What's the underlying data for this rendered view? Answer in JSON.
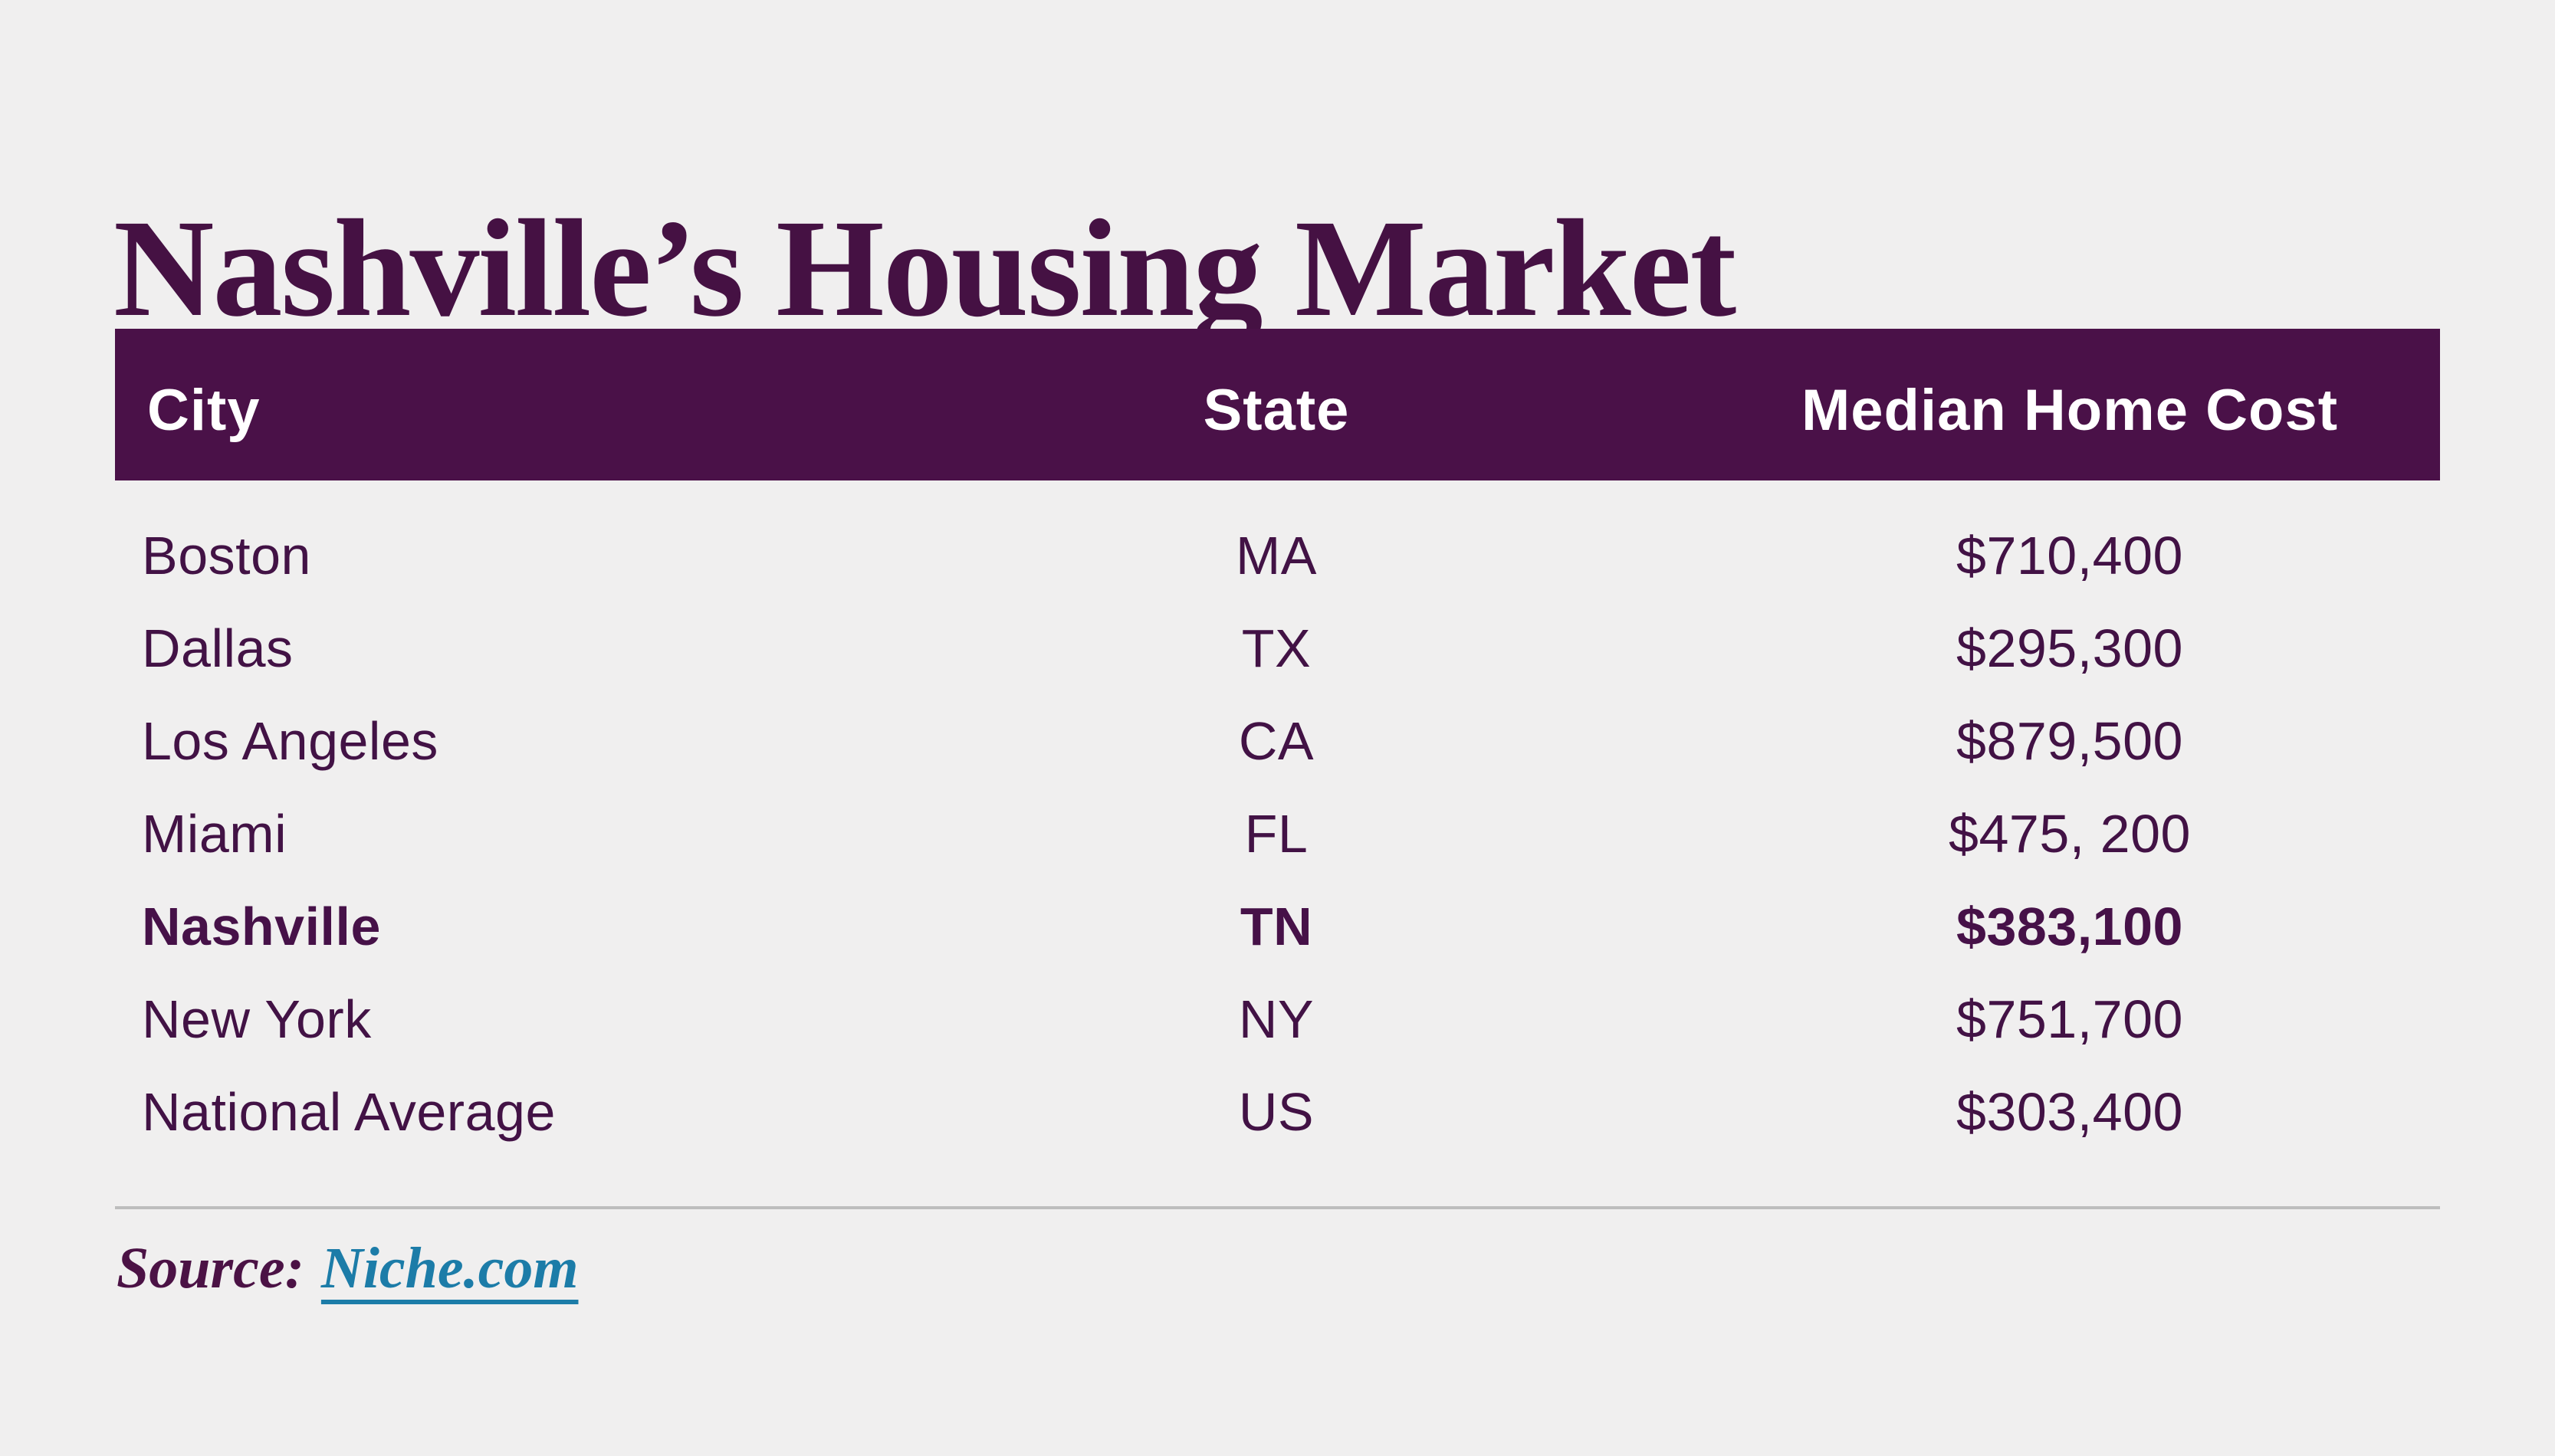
{
  "title": "Nashville’s Housing Market",
  "table": {
    "headers": [
      "City",
      "State",
      "Median Home Cost"
    ],
    "rows": [
      {
        "city": "Boston",
        "state": "MA",
        "cost": "$710,400",
        "highlight": false
      },
      {
        "city": "Dallas",
        "state": "TX",
        "cost": "$295,300",
        "highlight": false
      },
      {
        "city": "Los Angeles",
        "state": "CA",
        "cost": "$879,500",
        "highlight": false
      },
      {
        "city": "Miami",
        "state": "FL",
        "cost": "$475, 200",
        "highlight": false
      },
      {
        "city": "Nashville",
        "state": "TN",
        "cost": "$383,100",
        "highlight": true
      },
      {
        "city": "New York",
        "state": "NY",
        "cost": "$751,700",
        "highlight": false
      },
      {
        "city": "National Average",
        "state": "US",
        "cost": "$303,400",
        "highlight": false
      }
    ]
  },
  "source": {
    "prefix": "Source:",
    "link_text": "Niche.com"
  },
  "colors": {
    "background": "#f0efef",
    "header_bg": "#4a1148",
    "body_text": "#421245",
    "title_text": "#451143",
    "link_teal": "#1c7ca8",
    "divider_gray": "#bdbdbd"
  }
}
